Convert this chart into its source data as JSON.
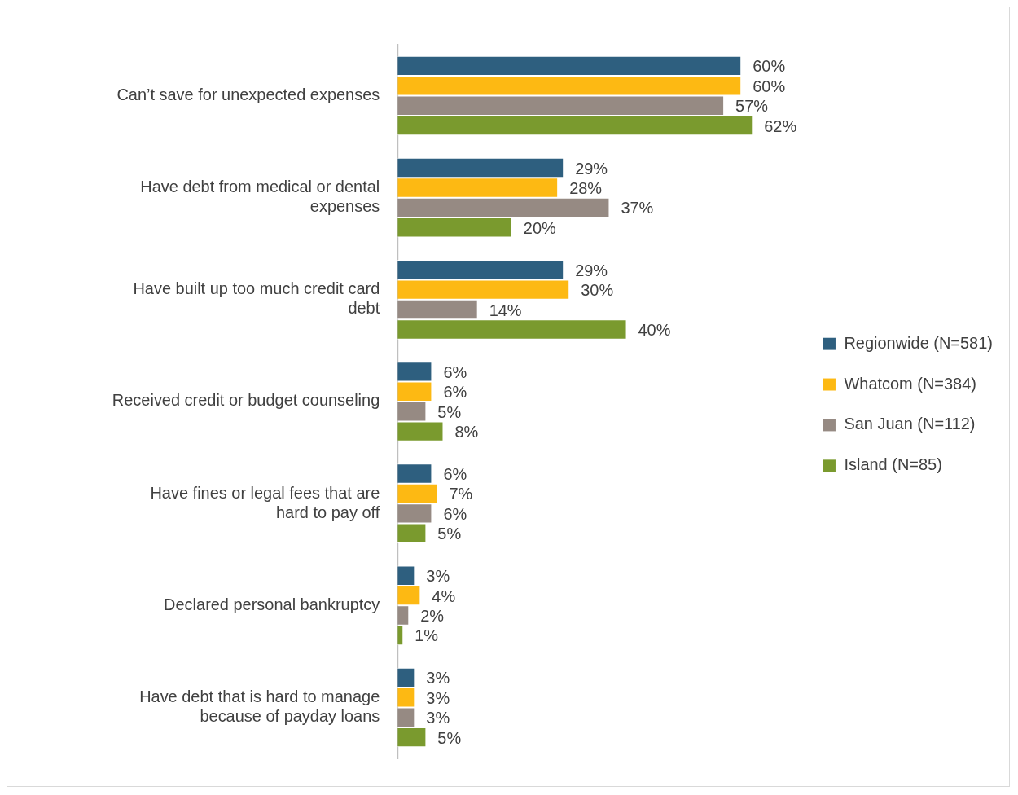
{
  "chart_data": {
    "type": "bar",
    "orientation": "horizontal",
    "legend": "right",
    "grid": false,
    "categories": [
      "Can’t save for unexpected expenses",
      "Have debt from medical or dental expenses",
      "Have built up too much credit card debt",
      "Received credit or budget counseling",
      "Have fines or legal fees that are hard to pay off",
      "Declared personal bankruptcy",
      "Have debt that is hard to manage because of payday loans"
    ],
    "series": [
      {
        "name": "Regionwide (N=581)",
        "color": "#2e5f7f",
        "values": [
          60,
          29,
          29,
          6,
          6,
          3,
          3
        ],
        "value_labels": [
          "60%",
          "29%",
          "29%",
          "6%",
          "6%",
          "3%",
          "3%"
        ]
      },
      {
        "name": "Whatcom (N=384)",
        "color": "#fdb913",
        "values": [
          60,
          28,
          30,
          6,
          7,
          4,
          3
        ],
        "value_labels": [
          "60%",
          "28%",
          "30%",
          "6%",
          "7%",
          "4%",
          "3%"
        ]
      },
      {
        "name": "San Juan (N=112)",
        "color": "#968a83",
        "values": [
          57,
          37,
          14,
          5,
          6,
          2,
          3
        ],
        "value_labels": [
          "57%",
          "37%",
          "14%",
          "5%",
          "6%",
          "2%",
          "3%"
        ]
      },
      {
        "name": "Island (N=85)",
        "color": "#7a9a2e",
        "values": [
          62,
          20,
          40,
          8,
          5,
          1,
          5
        ],
        "value_labels": [
          "62%",
          "20%",
          "40%",
          "8%",
          "5%",
          "1%",
          "5%"
        ]
      }
    ]
  }
}
